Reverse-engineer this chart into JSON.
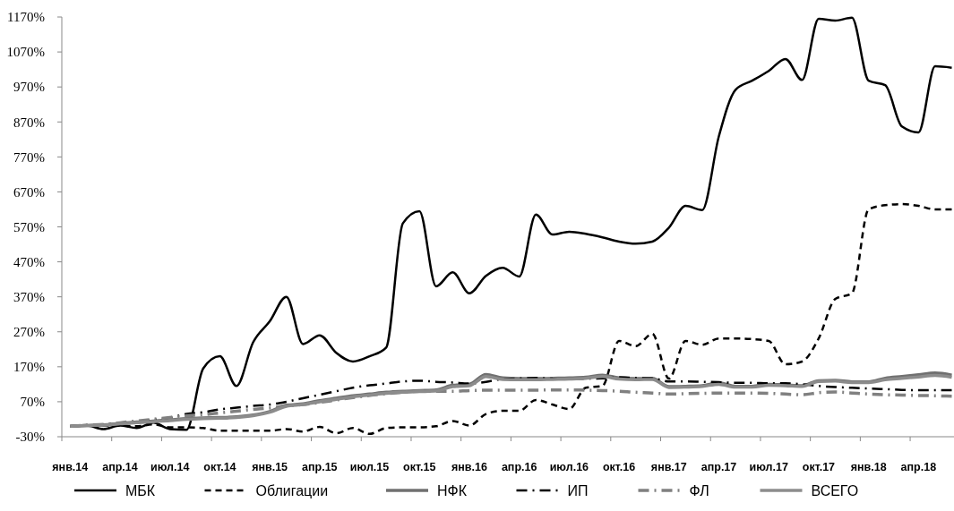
{
  "chart_data": {
    "type": "line",
    "categories": [
      "янв.14",
      null,
      null,
      "апр.14",
      null,
      null,
      "июл.14",
      null,
      null,
      "окт.14",
      null,
      null,
      "янв.15",
      null,
      null,
      "апр.15",
      null,
      null,
      "июл.15",
      null,
      null,
      "окт.15",
      null,
      null,
      "янв.16",
      null,
      null,
      "апр.16",
      null,
      null,
      "июл.16",
      null,
      null,
      "окт.16",
      null,
      null,
      "янв.17",
      null,
      null,
      "апр.17",
      null,
      null,
      "июл.17",
      null,
      null,
      "окт.17",
      null,
      null,
      "янв.18",
      null,
      null,
      "апр.18",
      null,
      null
    ],
    "ylim": [
      -30,
      1170
    ],
    "yticks": [
      {
        "value": -30,
        "label": "-30%"
      },
      {
        "value": 70,
        "label": "70%"
      },
      {
        "value": 170,
        "label": "170%"
      },
      {
        "value": 270,
        "label": "270%"
      },
      {
        "value": 370,
        "label": "370%"
      },
      {
        "value": 470,
        "label": "470%"
      },
      {
        "value": 570,
        "label": "570%"
      },
      {
        "value": 670,
        "label": "670%"
      },
      {
        "value": 770,
        "label": "770%"
      },
      {
        "value": 870,
        "label": "870%"
      },
      {
        "value": 970,
        "label": "970%"
      },
      {
        "value": 1070,
        "label": "1070%"
      },
      {
        "value": 1170,
        "label": "1170%"
      }
    ],
    "grid": false,
    "legend": "bottom",
    "series": [
      {
        "name": "МБК",
        "color": "#000000",
        "line_style": "solid",
        "values": [
          0,
          2,
          -8,
          2,
          -5,
          10,
          -8,
          -10,
          165,
          200,
          115,
          240,
          300,
          370,
          235,
          260,
          210,
          185,
          200,
          225,
          580,
          615,
          400,
          440,
          380,
          430,
          453,
          428,
          605,
          548,
          556,
          550,
          540,
          528,
          522,
          528,
          568,
          630,
          618,
          829,
          962,
          988,
          1016,
          1050,
          990,
          1165,
          1160,
          1168,
          988,
          975,
          857,
          840,
          1029,
          1025
        ]
      },
      {
        "name": "Облигации",
        "color": "#000000",
        "line_style": "dashed",
        "values": [
          0,
          3,
          2,
          2,
          0,
          5,
          -3,
          -3,
          -5,
          -13,
          -13,
          -13,
          -13,
          -8,
          -15,
          -2,
          -20,
          -5,
          -22,
          -5,
          -3,
          -3,
          0,
          15,
          2,
          35,
          44,
          44,
          75,
          62,
          49,
          110,
          115,
          244,
          229,
          264,
          136,
          244,
          233,
          251,
          251,
          249,
          244,
          177,
          185,
          251,
          364,
          380,
          620,
          632,
          635,
          630,
          620,
          620
        ]
      },
      {
        "name": "НФК",
        "color": "#707070",
        "line_style": "solid",
        "values": [
          0,
          2,
          4,
          8,
          12,
          15,
          18,
          22,
          24,
          25,
          27,
          32,
          42,
          60,
          64,
          73,
          80,
          87,
          92,
          97,
          100,
          102,
          104,
          117,
          120,
          148,
          138,
          136,
          136,
          137,
          138,
          140,
          146,
          138,
          136,
          137,
          113,
          114,
          116,
          124,
          114,
          114,
          120,
          118,
          116,
          130,
          131,
          127,
          127,
          137,
          142,
          147,
          152,
          146
        ]
      },
      {
        "name": "ИП",
        "color": "#000000",
        "line_style": "dashdot",
        "values": [
          0,
          2,
          5,
          8,
          12,
          18,
          25,
          35,
          40,
          48,
          53,
          58,
          62,
          70,
          80,
          90,
          100,
          110,
          117,
          122,
          128,
          130,
          127,
          125,
          122,
          127,
          135,
          137,
          138,
          136,
          135,
          136,
          137,
          140,
          138,
          137,
          128,
          128,
          127,
          126,
          124,
          124,
          123,
          123,
          120,
          115,
          112,
          110,
          108,
          106,
          104,
          103,
          103,
          103
        ]
      },
      {
        "name": "ФЛ",
        "color": "#808080",
        "line_style": "dashdot",
        "values": [
          0,
          3,
          5,
          10,
          15,
          20,
          25,
          30,
          33,
          38,
          43,
          48,
          52,
          58,
          62,
          68,
          75,
          82,
          88,
          93,
          97,
          100,
          100,
          100,
          102,
          103,
          103,
          103,
          103,
          104,
          104,
          103,
          102,
          100,
          97,
          95,
          92,
          93,
          94,
          95,
          95,
          95,
          94,
          92,
          90,
          96,
          98,
          95,
          92,
          90,
          89,
          88,
          87,
          86
        ]
      },
      {
        "name": "ВСЕГО",
        "color": "#8c8c8c",
        "line_style": "solid",
        "values": [
          0,
          2,
          3,
          7,
          10,
          13,
          16,
          20,
          22,
          23,
          25,
          30,
          40,
          57,
          62,
          70,
          77,
          84,
          89,
          94,
          97,
          99,
          101,
          113,
          116,
          142,
          134,
          133,
          133,
          134,
          135,
          137,
          142,
          135,
          133,
          134,
          111,
          112,
          114,
          120,
          112,
          112,
          117,
          116,
          114,
          128,
          129,
          125,
          125,
          133,
          137,
          141,
          145,
          140
        ]
      }
    ]
  }
}
